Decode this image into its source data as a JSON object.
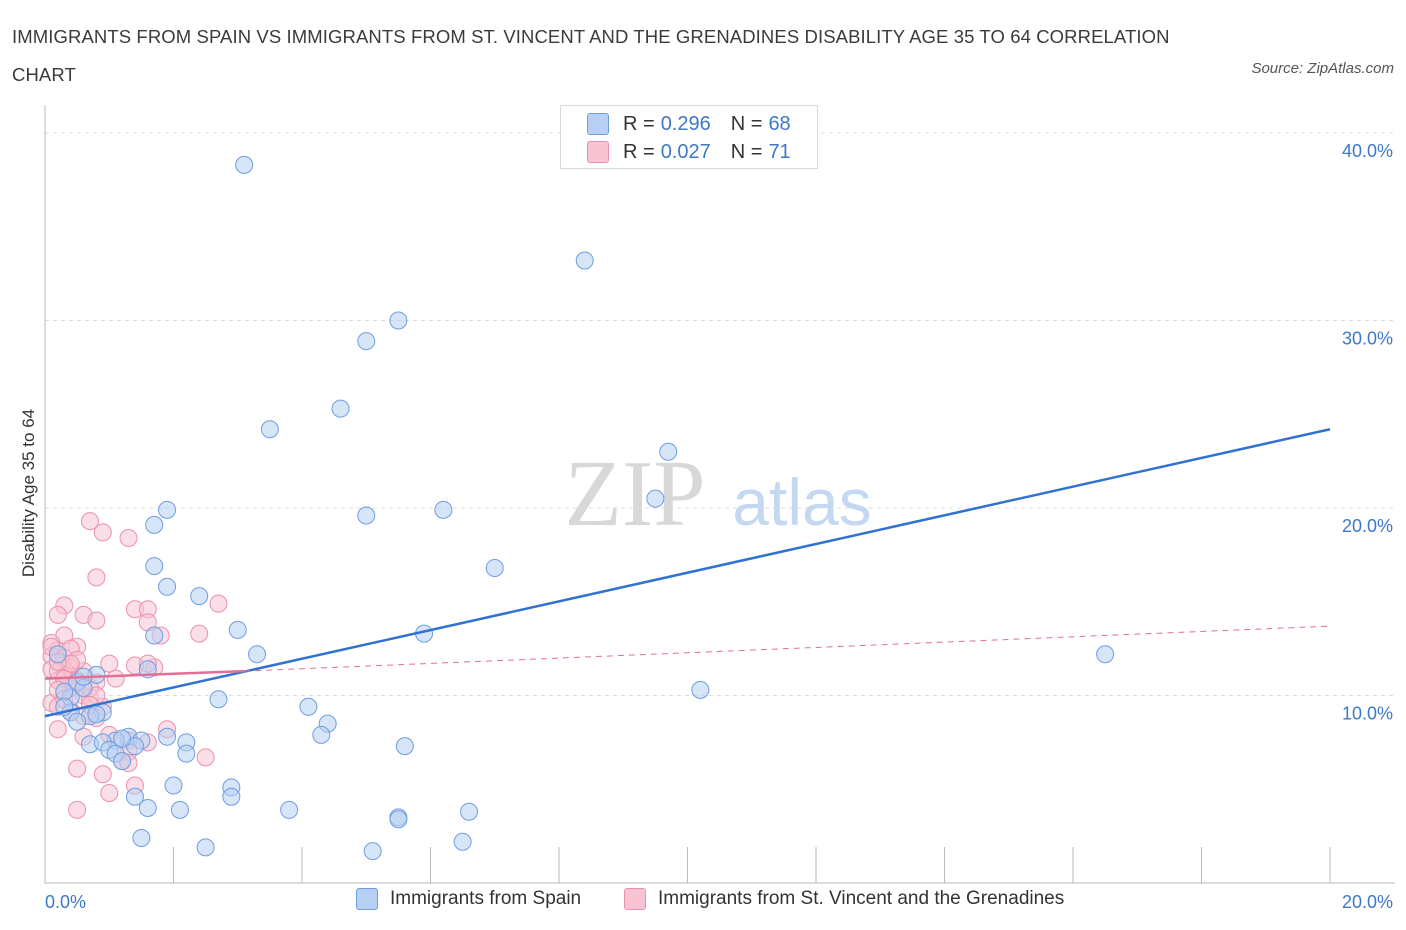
{
  "title": "IMMIGRANTS FROM SPAIN VS IMMIGRANTS FROM ST. VINCENT AND THE GRENADINES DISABILITY AGE 35 TO 64 CORRELATION CHART",
  "source": "Source: ZipAtlas.com",
  "watermark": {
    "zip": "ZIP",
    "atlas": "atlas"
  },
  "legend": {
    "r_label": "R =",
    "n_label": "N =",
    "series": [
      {
        "r": "0.296",
        "n": "68"
      },
      {
        "r": "0.027",
        "n": "71"
      }
    ]
  },
  "colors": {
    "spain_fill": "#b7cff3",
    "spain_stroke": "#6f9ee0",
    "spain_line": "#3072d0",
    "svg_fill": "#f8c4d4",
    "svg_stroke": "#eb90ad",
    "svg_line": "#e0709a",
    "axis_label": "#3d78c9",
    "grid": "#dcdcdc"
  },
  "chart_data": {
    "type": "scatter",
    "title": "IMMIGRANTS FROM SPAIN VS IMMIGRANTS FROM ST. VINCENT AND THE GRENADINES DISABILITY AGE 35 TO 64 CORRELATION CHART",
    "xlabel": "",
    "ylabel": "Disability Age 35 to 64",
    "xlim": [
      0,
      20
    ],
    "ylim": [
      0,
      40
    ],
    "x_tick_labels": [
      "0.0%",
      "20.0%"
    ],
    "y_ticks": [
      10,
      20,
      30,
      40
    ],
    "y_tick_labels": [
      "10.0%",
      "20.0%",
      "30.0%",
      "40.0%"
    ],
    "grid": true,
    "series": [
      {
        "name": "Immigrants from Spain",
        "points": [
          [
            3.1,
            38.3
          ],
          [
            8.4,
            33.2
          ],
          [
            5.5,
            30.0
          ],
          [
            5.0,
            28.9
          ],
          [
            4.6,
            25.3
          ],
          [
            3.5,
            24.2
          ],
          [
            9.7,
            23.0
          ],
          [
            9.5,
            20.5
          ],
          [
            1.9,
            19.9
          ],
          [
            6.2,
            19.9
          ],
          [
            5.0,
            19.6
          ],
          [
            1.7,
            19.1
          ],
          [
            7.0,
            16.8
          ],
          [
            1.7,
            16.9
          ],
          [
            1.9,
            15.8
          ],
          [
            2.4,
            15.3
          ],
          [
            3.0,
            13.5
          ],
          [
            5.9,
            13.3
          ],
          [
            1.7,
            13.2
          ],
          [
            3.3,
            12.2
          ],
          [
            16.5,
            12.2
          ],
          [
            1.6,
            11.4
          ],
          [
            0.8,
            11.1
          ],
          [
            0.5,
            10.7
          ],
          [
            0.4,
            9.9
          ],
          [
            0.6,
            10.4
          ],
          [
            2.7,
            9.8
          ],
          [
            10.2,
            10.3
          ],
          [
            0.4,
            9.1
          ],
          [
            0.9,
            9.1
          ],
          [
            0.7,
            8.9
          ],
          [
            0.5,
            8.6
          ],
          [
            4.1,
            9.4
          ],
          [
            4.4,
            8.5
          ],
          [
            4.3,
            7.9
          ],
          [
            1.3,
            7.8
          ],
          [
            1.1,
            7.6
          ],
          [
            1.5,
            7.6
          ],
          [
            1.9,
            7.8
          ],
          [
            2.2,
            7.5
          ],
          [
            0.7,
            7.4
          ],
          [
            0.9,
            7.5
          ],
          [
            1.0,
            7.1
          ],
          [
            1.1,
            6.9
          ],
          [
            2.2,
            6.9
          ],
          [
            1.2,
            6.5
          ],
          [
            1.4,
            7.3
          ],
          [
            5.6,
            7.3
          ],
          [
            2.0,
            5.2
          ],
          [
            2.9,
            5.1
          ],
          [
            2.9,
            4.6
          ],
          [
            1.4,
            4.6
          ],
          [
            1.6,
            4.0
          ],
          [
            2.1,
            3.9
          ],
          [
            3.8,
            3.9
          ],
          [
            5.5,
            3.5
          ],
          [
            5.5,
            3.4
          ],
          [
            6.6,
            3.8
          ],
          [
            1.5,
            2.4
          ],
          [
            2.5,
            1.9
          ],
          [
            5.1,
            1.7
          ],
          [
            6.5,
            2.2
          ],
          [
            0.3,
            10.2
          ],
          [
            0.2,
            12.2
          ],
          [
            0.3,
            9.4
          ],
          [
            0.6,
            11.0
          ],
          [
            1.2,
            7.7
          ],
          [
            0.8,
            9.0
          ]
        ]
      },
      {
        "name": "Immigrants from St. Vincent and the Grenadines",
        "points": [
          [
            0.7,
            19.3
          ],
          [
            0.9,
            18.7
          ],
          [
            1.3,
            18.4
          ],
          [
            0.8,
            16.3
          ],
          [
            0.3,
            14.8
          ],
          [
            0.2,
            14.3
          ],
          [
            0.6,
            14.3
          ],
          [
            0.8,
            14.0
          ],
          [
            1.4,
            14.6
          ],
          [
            1.6,
            14.6
          ],
          [
            2.7,
            14.9
          ],
          [
            1.6,
            13.9
          ],
          [
            2.4,
            13.3
          ],
          [
            1.8,
            13.2
          ],
          [
            0.3,
            13.2
          ],
          [
            0.1,
            12.8
          ],
          [
            0.5,
            12.6
          ],
          [
            0.2,
            12.4
          ],
          [
            0.1,
            12.1
          ],
          [
            0.3,
            12.0
          ],
          [
            1.0,
            11.7
          ],
          [
            1.4,
            11.6
          ],
          [
            0.4,
            11.5
          ],
          [
            0.1,
            11.4
          ],
          [
            0.3,
            11.1
          ],
          [
            0.4,
            11.0
          ],
          [
            0.2,
            10.8
          ],
          [
            0.5,
            10.6
          ],
          [
            0.4,
            10.4
          ],
          [
            0.8,
            10.7
          ],
          [
            1.1,
            10.9
          ],
          [
            0.3,
            10.2
          ],
          [
            0.6,
            10.0
          ],
          [
            0.7,
            9.9
          ],
          [
            0.1,
            9.6
          ],
          [
            0.2,
            9.4
          ],
          [
            0.4,
            9.2
          ],
          [
            0.6,
            8.9
          ],
          [
            0.8,
            8.8
          ],
          [
            1.7,
            11.5
          ],
          [
            1.6,
            11.7
          ],
          [
            1.9,
            8.2
          ],
          [
            0.2,
            8.2
          ],
          [
            0.6,
            7.8
          ],
          [
            1.3,
            7.6
          ],
          [
            1.6,
            7.5
          ],
          [
            1.3,
            7.0
          ],
          [
            1.0,
            7.9
          ],
          [
            2.5,
            6.7
          ],
          [
            1.2,
            6.5
          ],
          [
            1.3,
            6.4
          ],
          [
            0.5,
            6.1
          ],
          [
            0.9,
            5.8
          ],
          [
            1.4,
            5.2
          ],
          [
            1.0,
            4.8
          ],
          [
            0.5,
            3.9
          ],
          [
            0.2,
            11.3
          ],
          [
            0.4,
            12.5
          ],
          [
            0.6,
            11.3
          ],
          [
            0.3,
            10.9
          ],
          [
            0.7,
            10.4
          ],
          [
            0.5,
            11.9
          ],
          [
            0.9,
            9.4
          ],
          [
            0.2,
            10.3
          ],
          [
            0.3,
            9.8
          ],
          [
            0.8,
            10.0
          ],
          [
            0.1,
            12.6
          ],
          [
            0.4,
            11.7
          ],
          [
            0.7,
            9.5
          ],
          [
            0.2,
            11.8
          ],
          [
            0.5,
            10.8
          ]
        ]
      }
    ],
    "trendlines": [
      {
        "series": "Immigrants from Spain",
        "x": [
          0,
          20
        ],
        "y": [
          8.9,
          24.2
        ],
        "style": "solid"
      },
      {
        "series": "Immigrants from St. Vincent and the Grenadines",
        "x": [
          0,
          3.1
        ],
        "y": [
          10.9,
          11.3
        ],
        "style": "solid"
      },
      {
        "series": "Immigrants from St. Vincent and the Grenadines",
        "x": [
          3.1,
          20
        ],
        "y": [
          11.3,
          13.7
        ],
        "style": "dashed"
      }
    ]
  }
}
